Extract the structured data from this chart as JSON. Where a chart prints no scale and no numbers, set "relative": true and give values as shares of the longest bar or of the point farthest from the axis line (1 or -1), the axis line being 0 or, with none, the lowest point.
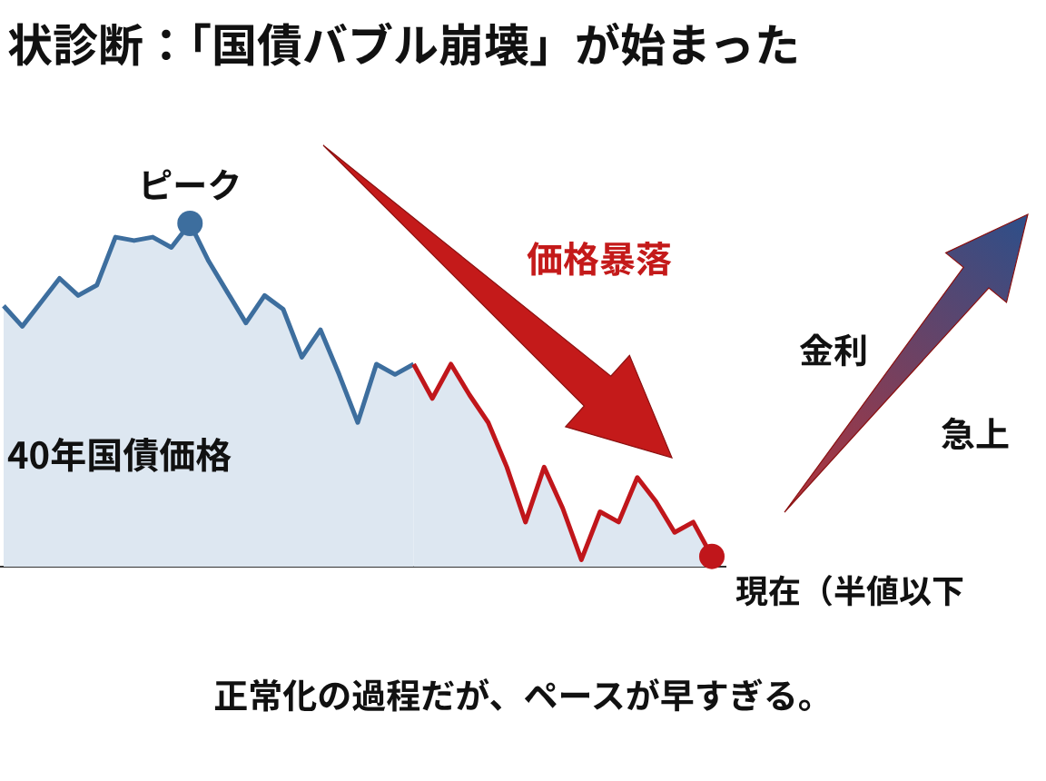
{
  "chart_data": {
    "type": "area",
    "relative": true,
    "title": "状診断：「国債バブル崩壊」が始まった",
    "categories": [
      null,
      null,
      null,
      null,
      null,
      null,
      null,
      null,
      null,
      null,
      null,
      null,
      null,
      null,
      null,
      null,
      null,
      null,
      null,
      null,
      null,
      null,
      null,
      null,
      null,
      null,
      null,
      null,
      null,
      null,
      null,
      null,
      null,
      null,
      null,
      null,
      null,
      null,
      null
    ],
    "series": [
      {
        "color": "#3d6e9e",
        "values": [
          0.76,
          0.7,
          0.77,
          0.84,
          0.79,
          0.82,
          0.96,
          0.95,
          0.96,
          0.93,
          1,
          0.89,
          0.8,
          0.71,
          0.79,
          0.75,
          0.61,
          0.69,
          0.56,
          0.42,
          0.59,
          0.56,
          0.59,
          null,
          null,
          null,
          null,
          null,
          null,
          null,
          null,
          null,
          null,
          null,
          null,
          null,
          null,
          null,
          null
        ]
      },
      {
        "color": "#c0161b",
        "values": [
          null,
          null,
          null,
          null,
          null,
          null,
          null,
          null,
          null,
          null,
          null,
          null,
          null,
          null,
          null,
          null,
          null,
          null,
          null,
          null,
          null,
          null,
          0.59,
          0.49,
          0.59,
          0.5,
          0.42,
          0.29,
          0.13,
          0.29,
          0.17,
          0.02,
          0.16,
          0.13,
          0.26,
          0.19,
          0.1,
          0.13,
          0.03
        ]
      }
    ],
    "marker": "none",
    "annotations": [
      {
        "text": "ピーク",
        "y": 1
      },
      "40年国債価格",
      "価格暴落",
      "金利",
      "急上",
      "現在（半値以下",
      "正常化の過程だが、ペースが早すぎる。"
    ]
  }
}
